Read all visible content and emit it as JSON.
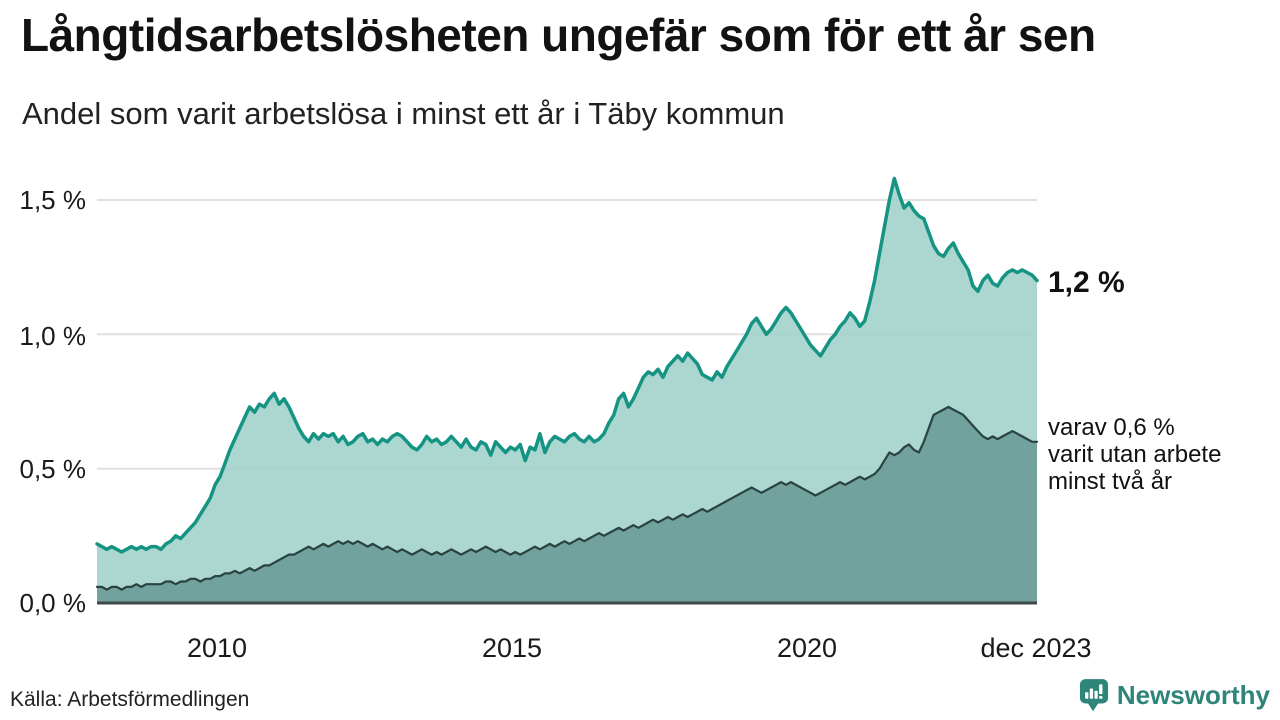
{
  "header": {
    "title": "Långtidsarbetslösheten ungefär som för ett år sen",
    "subtitle": "Andel som varit arbetslösa i minst ett år i Täby kommun"
  },
  "annotations": {
    "latest_total": "1,2 %",
    "secondary_breakdown": "varav 0,6 %\nvarit utan arbete\nminst två år"
  },
  "footer": {
    "source": "Källa: Arbetsförmedlingen",
    "brand": "Newsworthy"
  },
  "colors": {
    "line_1plus": "#169483",
    "fill_1plus": "#9fd2ca",
    "line_2plus": "#2a4340",
    "fill_2plus": "#6b9d98",
    "gridline": "#e0e0e0",
    "baseline": "#3e4947",
    "brand_teal": "#2e8579"
  },
  "chart_data": {
    "type": "area",
    "title": "Långtidsarbetslösheten ungefär som för ett år sen",
    "subtitle": "Andel som varit arbetslösa i minst ett år i Täby kommun",
    "unit": "%",
    "frequency": "monthly",
    "x_start": "2008-01",
    "x_end": "2023-12",
    "ylim": [
      0,
      1.6
    ],
    "grid_values": [
      0.5,
      1.0,
      1.5
    ],
    "yticks": [
      "1,5 %",
      "1,0 %",
      "0,5 %",
      "0,0 %"
    ],
    "xticks": [
      "2010",
      "2015",
      "2020",
      "dec 2023"
    ],
    "legend": "none",
    "series": [
      {
        "name": "Arbetslösa minst ett år",
        "end_label": "1,2 %",
        "end_value": 1.2,
        "color": "#169483",
        "fill": "#9fd2ca",
        "fill_opacity": 0.88,
        "values": [
          0.22,
          0.21,
          0.2,
          0.21,
          0.2,
          0.19,
          0.2,
          0.21,
          0.2,
          0.21,
          0.2,
          0.21,
          0.21,
          0.2,
          0.22,
          0.23,
          0.25,
          0.24,
          0.26,
          0.28,
          0.3,
          0.33,
          0.36,
          0.39,
          0.44,
          0.47,
          0.52,
          0.57,
          0.61,
          0.65,
          0.69,
          0.73,
          0.71,
          0.74,
          0.73,
          0.76,
          0.78,
          0.74,
          0.76,
          0.73,
          0.69,
          0.65,
          0.62,
          0.6,
          0.63,
          0.61,
          0.63,
          0.62,
          0.63,
          0.6,
          0.62,
          0.59,
          0.6,
          0.62,
          0.63,
          0.6,
          0.61,
          0.59,
          0.61,
          0.6,
          0.62,
          0.63,
          0.62,
          0.6,
          0.58,
          0.57,
          0.59,
          0.62,
          0.6,
          0.61,
          0.59,
          0.6,
          0.62,
          0.6,
          0.58,
          0.61,
          0.58,
          0.57,
          0.6,
          0.59,
          0.55,
          0.6,
          0.58,
          0.56,
          0.58,
          0.57,
          0.59,
          0.53,
          0.58,
          0.57,
          0.63,
          0.56,
          0.6,
          0.62,
          0.61,
          0.6,
          0.62,
          0.63,
          0.61,
          0.6,
          0.62,
          0.6,
          0.61,
          0.63,
          0.67,
          0.7,
          0.76,
          0.78,
          0.73,
          0.76,
          0.8,
          0.84,
          0.86,
          0.85,
          0.87,
          0.84,
          0.88,
          0.9,
          0.92,
          0.9,
          0.93,
          0.91,
          0.89,
          0.85,
          0.84,
          0.83,
          0.86,
          0.84,
          0.88,
          0.91,
          0.94,
          0.97,
          1.0,
          1.04,
          1.06,
          1.03,
          1.0,
          1.02,
          1.05,
          1.08,
          1.1,
          1.08,
          1.05,
          1.02,
          0.99,
          0.96,
          0.94,
          0.92,
          0.95,
          0.98,
          1.0,
          1.03,
          1.05,
          1.08,
          1.06,
          1.03,
          1.05,
          1.12,
          1.2,
          1.3,
          1.4,
          1.5,
          1.58,
          1.52,
          1.47,
          1.49,
          1.46,
          1.44,
          1.43,
          1.38,
          1.33,
          1.3,
          1.29,
          1.32,
          1.34,
          1.3,
          1.27,
          1.24,
          1.18,
          1.16,
          1.2,
          1.22,
          1.19,
          1.18,
          1.21,
          1.23,
          1.24,
          1.23,
          1.24,
          1.23,
          1.22,
          1.2
        ]
      },
      {
        "name": "Arbetslösa minst två år",
        "end_label": "varav 0,6 % varit utan arbete minst två år",
        "end_value": 0.6,
        "color": "#2a4340",
        "fill": "#6b9d98",
        "fill_opacity": 0.92,
        "values": [
          0.06,
          0.06,
          0.05,
          0.06,
          0.06,
          0.05,
          0.06,
          0.06,
          0.07,
          0.06,
          0.07,
          0.07,
          0.07,
          0.07,
          0.08,
          0.08,
          0.07,
          0.08,
          0.08,
          0.09,
          0.09,
          0.08,
          0.09,
          0.09,
          0.1,
          0.1,
          0.11,
          0.11,
          0.12,
          0.11,
          0.12,
          0.13,
          0.12,
          0.13,
          0.14,
          0.14,
          0.15,
          0.16,
          0.17,
          0.18,
          0.18,
          0.19,
          0.2,
          0.21,
          0.2,
          0.21,
          0.22,
          0.21,
          0.22,
          0.23,
          0.22,
          0.23,
          0.22,
          0.23,
          0.22,
          0.21,
          0.22,
          0.21,
          0.2,
          0.21,
          0.2,
          0.19,
          0.2,
          0.19,
          0.18,
          0.19,
          0.2,
          0.19,
          0.18,
          0.19,
          0.18,
          0.19,
          0.2,
          0.19,
          0.18,
          0.19,
          0.2,
          0.19,
          0.2,
          0.21,
          0.2,
          0.19,
          0.2,
          0.19,
          0.18,
          0.19,
          0.18,
          0.19,
          0.2,
          0.21,
          0.2,
          0.21,
          0.22,
          0.21,
          0.22,
          0.23,
          0.22,
          0.23,
          0.24,
          0.23,
          0.24,
          0.25,
          0.26,
          0.25,
          0.26,
          0.27,
          0.28,
          0.27,
          0.28,
          0.29,
          0.28,
          0.29,
          0.3,
          0.31,
          0.3,
          0.31,
          0.32,
          0.31,
          0.32,
          0.33,
          0.32,
          0.33,
          0.34,
          0.35,
          0.34,
          0.35,
          0.36,
          0.37,
          0.38,
          0.39,
          0.4,
          0.41,
          0.42,
          0.43,
          0.42,
          0.41,
          0.42,
          0.43,
          0.44,
          0.45,
          0.44,
          0.45,
          0.44,
          0.43,
          0.42,
          0.41,
          0.4,
          0.41,
          0.42,
          0.43,
          0.44,
          0.45,
          0.44,
          0.45,
          0.46,
          0.47,
          0.46,
          0.47,
          0.48,
          0.5,
          0.53,
          0.56,
          0.55,
          0.56,
          0.58,
          0.59,
          0.57,
          0.56,
          0.6,
          0.65,
          0.7,
          0.71,
          0.72,
          0.73,
          0.72,
          0.71,
          0.7,
          0.68,
          0.66,
          0.64,
          0.62,
          0.61,
          0.62,
          0.61,
          0.62,
          0.63,
          0.64,
          0.63,
          0.62,
          0.61,
          0.6,
          0.6
        ]
      }
    ]
  }
}
